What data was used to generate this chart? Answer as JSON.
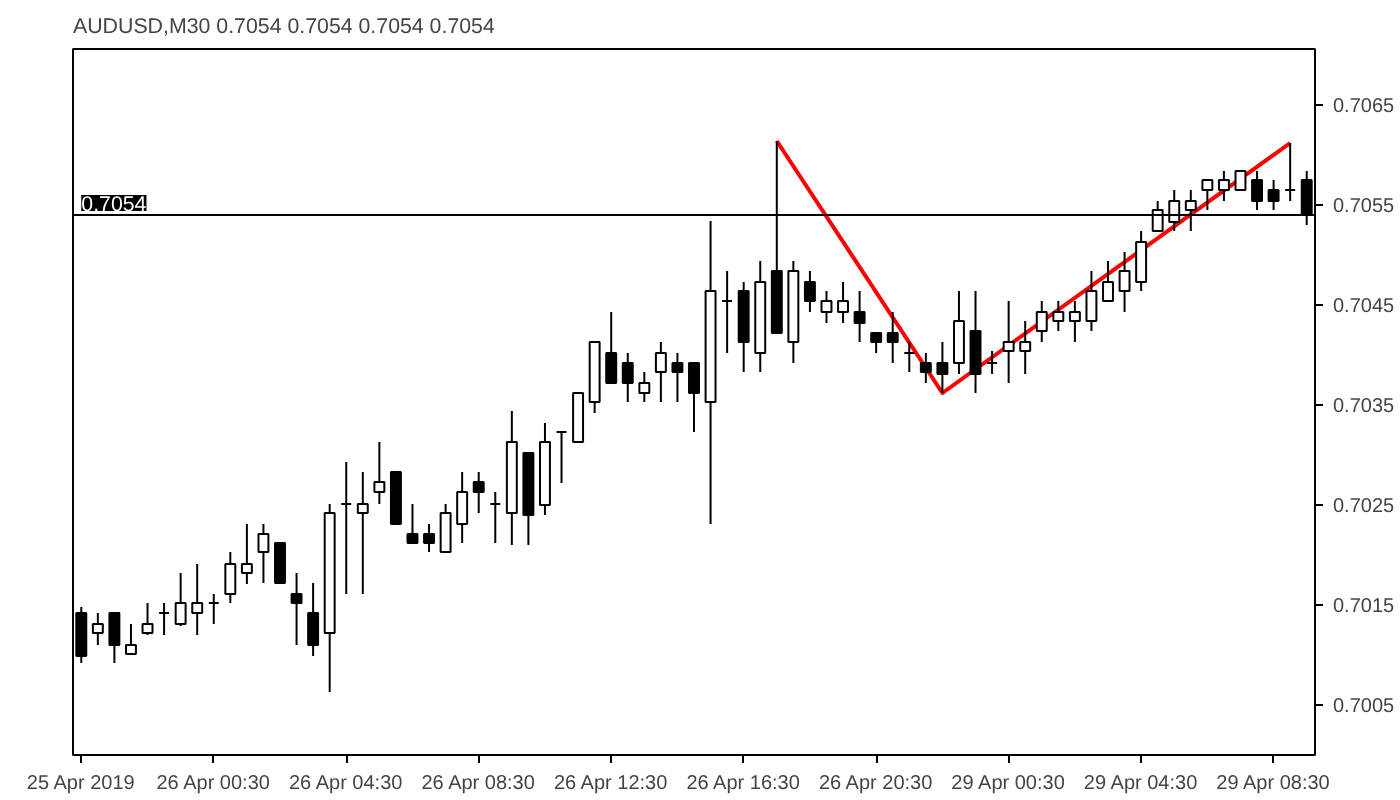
{
  "chart_data": {
    "type": "candlestick",
    "title": "AUDUSD,M30  0.7054 0.7054 0.7054 0.7054",
    "categories": [
      "25 Apr 2019",
      null,
      null,
      null,
      null,
      null,
      null,
      null,
      "26 Apr 00:30",
      null,
      null,
      null,
      null,
      null,
      null,
      null,
      "26 Apr 04:30",
      null,
      null,
      null,
      null,
      null,
      null,
      null,
      "26 Apr 08:30",
      null,
      null,
      null,
      null,
      null,
      null,
      null,
      "26 Apr 12:30",
      null,
      null,
      null,
      null,
      null,
      null,
      null,
      "26 Apr 16:30",
      null,
      null,
      null,
      null,
      null,
      null,
      null,
      "26 Apr 20:30",
      null,
      null,
      null,
      null,
      null,
      null,
      null,
      "29 Apr 00:30",
      null,
      null,
      null,
      null,
      null,
      null,
      null,
      "29 Apr 04:30",
      null,
      null,
      null,
      null,
      null,
      null,
      null,
      "29 Apr 08:30",
      null,
      null
    ],
    "color": "#000000",
    "ohlc": [
      [
        0.70142,
        0.70148,
        0.70092,
        0.70099
      ],
      [
        0.70122,
        0.70142,
        0.7011,
        0.70131
      ],
      [
        0.70142,
        0.70142,
        0.70092,
        0.7011
      ],
      [
        0.70101,
        0.70131,
        0.70101,
        0.7011
      ],
      [
        0.70122,
        0.70152,
        0.7012,
        0.70131
      ],
      [
        0.70142,
        0.70152,
        0.7012,
        0.70142
      ],
      [
        0.70131,
        0.70182,
        0.70129,
        0.70152
      ],
      [
        0.70142,
        0.70191,
        0.7012,
        0.70152
      ],
      [
        0.70152,
        0.70161,
        0.70131,
        0.70152
      ],
      [
        0.70161,
        0.70203,
        0.70152,
        0.70191
      ],
      [
        0.70182,
        0.70231,
        0.70171,
        0.70191
      ],
      [
        0.70203,
        0.70231,
        0.70172,
        0.70221
      ],
      [
        0.70212,
        0.70212,
        0.70172,
        0.70172
      ],
      [
        0.70161,
        0.70182,
        0.7011,
        0.70152
      ],
      [
        0.70142,
        0.70172,
        0.70099,
        0.7011
      ],
      [
        0.70122,
        0.70251,
        0.70063,
        0.70242
      ],
      [
        0.70251,
        0.70293,
        0.70161,
        0.70251
      ],
      [
        0.70242,
        0.70283,
        0.70161,
        0.70251
      ],
      [
        0.70263,
        0.70313,
        0.70251,
        0.70273
      ],
      [
        0.70283,
        0.70283,
        0.70231,
        0.70231
      ],
      [
        0.70221,
        0.70251,
        0.70212,
        0.70212
      ],
      [
        0.70221,
        0.70231,
        0.70203,
        0.70212
      ],
      [
        0.70203,
        0.70251,
        0.70203,
        0.70242
      ],
      [
        0.70231,
        0.70283,
        0.70212,
        0.70263
      ],
      [
        0.70273,
        0.70283,
        0.70242,
        0.70263
      ],
      [
        0.70251,
        0.70263,
        0.70212,
        0.70251
      ],
      [
        0.70242,
        0.70344,
        0.7021,
        0.70313
      ],
      [
        0.70302,
        0.70302,
        0.7021,
        0.7024
      ],
      [
        0.7025,
        0.70332,
        0.7024,
        0.70313
      ],
      [
        0.70323,
        0.70323,
        0.70272,
        0.70323
      ],
      [
        0.70313,
        0.70362,
        0.70313,
        0.70362
      ],
      [
        0.70353,
        0.70413,
        0.70342,
        0.70413
      ],
      [
        0.70402,
        0.70443,
        0.70372,
        0.70372
      ],
      [
        0.70392,
        0.70402,
        0.70353,
        0.70372
      ],
      [
        0.70362,
        0.70383,
        0.70353,
        0.70372
      ],
      [
        0.70383,
        0.70413,
        0.70353,
        0.70402
      ],
      [
        0.70392,
        0.70402,
        0.70353,
        0.70383
      ],
      [
        0.70392,
        0.70392,
        0.70323,
        0.70362
      ],
      [
        0.70353,
        0.70534,
        0.70231,
        0.70464
      ],
      [
        0.70454,
        0.70484,
        0.70402,
        0.70454
      ],
      [
        0.70464,
        0.70473,
        0.70383,
        0.70413
      ],
      [
        0.70402,
        0.70494,
        0.70383,
        0.70473
      ],
      [
        0.70484,
        0.70614,
        0.70422,
        0.70422
      ],
      [
        0.70413,
        0.70494,
        0.70392,
        0.70484
      ],
      [
        0.70473,
        0.70484,
        0.70443,
        0.70454
      ],
      [
        0.70443,
        0.70464,
        0.70432,
        0.70454
      ],
      [
        0.70443,
        0.70473,
        0.70432,
        0.70454
      ],
      [
        0.70443,
        0.70464,
        0.70413,
        0.70432
      ],
      [
        0.70422,
        0.70422,
        0.70402,
        0.70413
      ],
      [
        0.70422,
        0.70443,
        0.70392,
        0.70413
      ],
      [
        0.70402,
        0.70413,
        0.70383,
        0.70402
      ],
      [
        0.70392,
        0.70402,
        0.70372,
        0.70383
      ],
      [
        0.70392,
        0.70413,
        0.70362,
        0.70381
      ],
      [
        0.70392,
        0.70464,
        0.70381,
        0.70434
      ],
      [
        0.70424,
        0.70464,
        0.70362,
        0.70381
      ],
      [
        0.70392,
        0.70404,
        0.70381,
        0.70392
      ],
      [
        0.70404,
        0.70454,
        0.70372,
        0.70413
      ],
      [
        0.70404,
        0.70434,
        0.70381,
        0.70413
      ],
      [
        0.70424,
        0.70454,
        0.70413,
        0.70443
      ],
      [
        0.70434,
        0.70454,
        0.70424,
        0.70443
      ],
      [
        0.70434,
        0.70454,
        0.70413,
        0.70443
      ],
      [
        0.70434,
        0.70484,
        0.70424,
        0.70464
      ],
      [
        0.70454,
        0.70494,
        0.70454,
        0.70473
      ],
      [
        0.70464,
        0.70503,
        0.70443,
        0.70484
      ],
      [
        0.70473,
        0.70524,
        0.70464,
        0.70513
      ],
      [
        0.70524,
        0.70554,
        0.70524,
        0.70545
      ],
      [
        0.70533,
        0.70565,
        0.70524,
        0.70554
      ],
      [
        0.70545,
        0.70565,
        0.70524,
        0.70554
      ],
      [
        0.70565,
        0.70575,
        0.70545,
        0.70575
      ],
      [
        0.70565,
        0.70584,
        0.70554,
        0.70575
      ],
      [
        0.70565,
        0.70584,
        0.70565,
        0.70584
      ],
      [
        0.70575,
        0.70584,
        0.70545,
        0.70554
      ],
      [
        0.70565,
        0.70575,
        0.70545,
        0.70554
      ],
      [
        0.70565,
        0.70612,
        0.70554,
        0.70565
      ],
      [
        0.70575,
        0.70584,
        0.7053,
        0.7054
      ]
    ],
    "series": [
      {
        "type": "line",
        "color": "#ff0000",
        "values": [
          null,
          null,
          null,
          null,
          null,
          null,
          null,
          null,
          null,
          null,
          null,
          null,
          null,
          null,
          null,
          null,
          null,
          null,
          null,
          null,
          null,
          null,
          null,
          null,
          null,
          null,
          null,
          null,
          null,
          null,
          null,
          null,
          null,
          null,
          null,
          null,
          null,
          null,
          null,
          null,
          null,
          null,
          0.70614,
          null,
          null,
          null,
          null,
          null,
          null,
          null,
          null,
          null,
          0.70362,
          null,
          null,
          null,
          null,
          null,
          null,
          null,
          null,
          null,
          null,
          null,
          null,
          null,
          null,
          null,
          null,
          null,
          null,
          null,
          null,
          0.70612,
          null
        ]
      }
    ],
    "line_style": "solid",
    "ylim": [
      0.7,
      0.70706
    ],
    "yticks": [
      0.7005,
      0.7015,
      0.7025,
      0.7035,
      0.7045,
      0.7055,
      0.7065
    ],
    "ref_lines": [
      {
        "axis": "y",
        "value": 0.7054,
        "label": "0.7054",
        "color": "#000000"
      }
    ],
    "grid": false
  }
}
